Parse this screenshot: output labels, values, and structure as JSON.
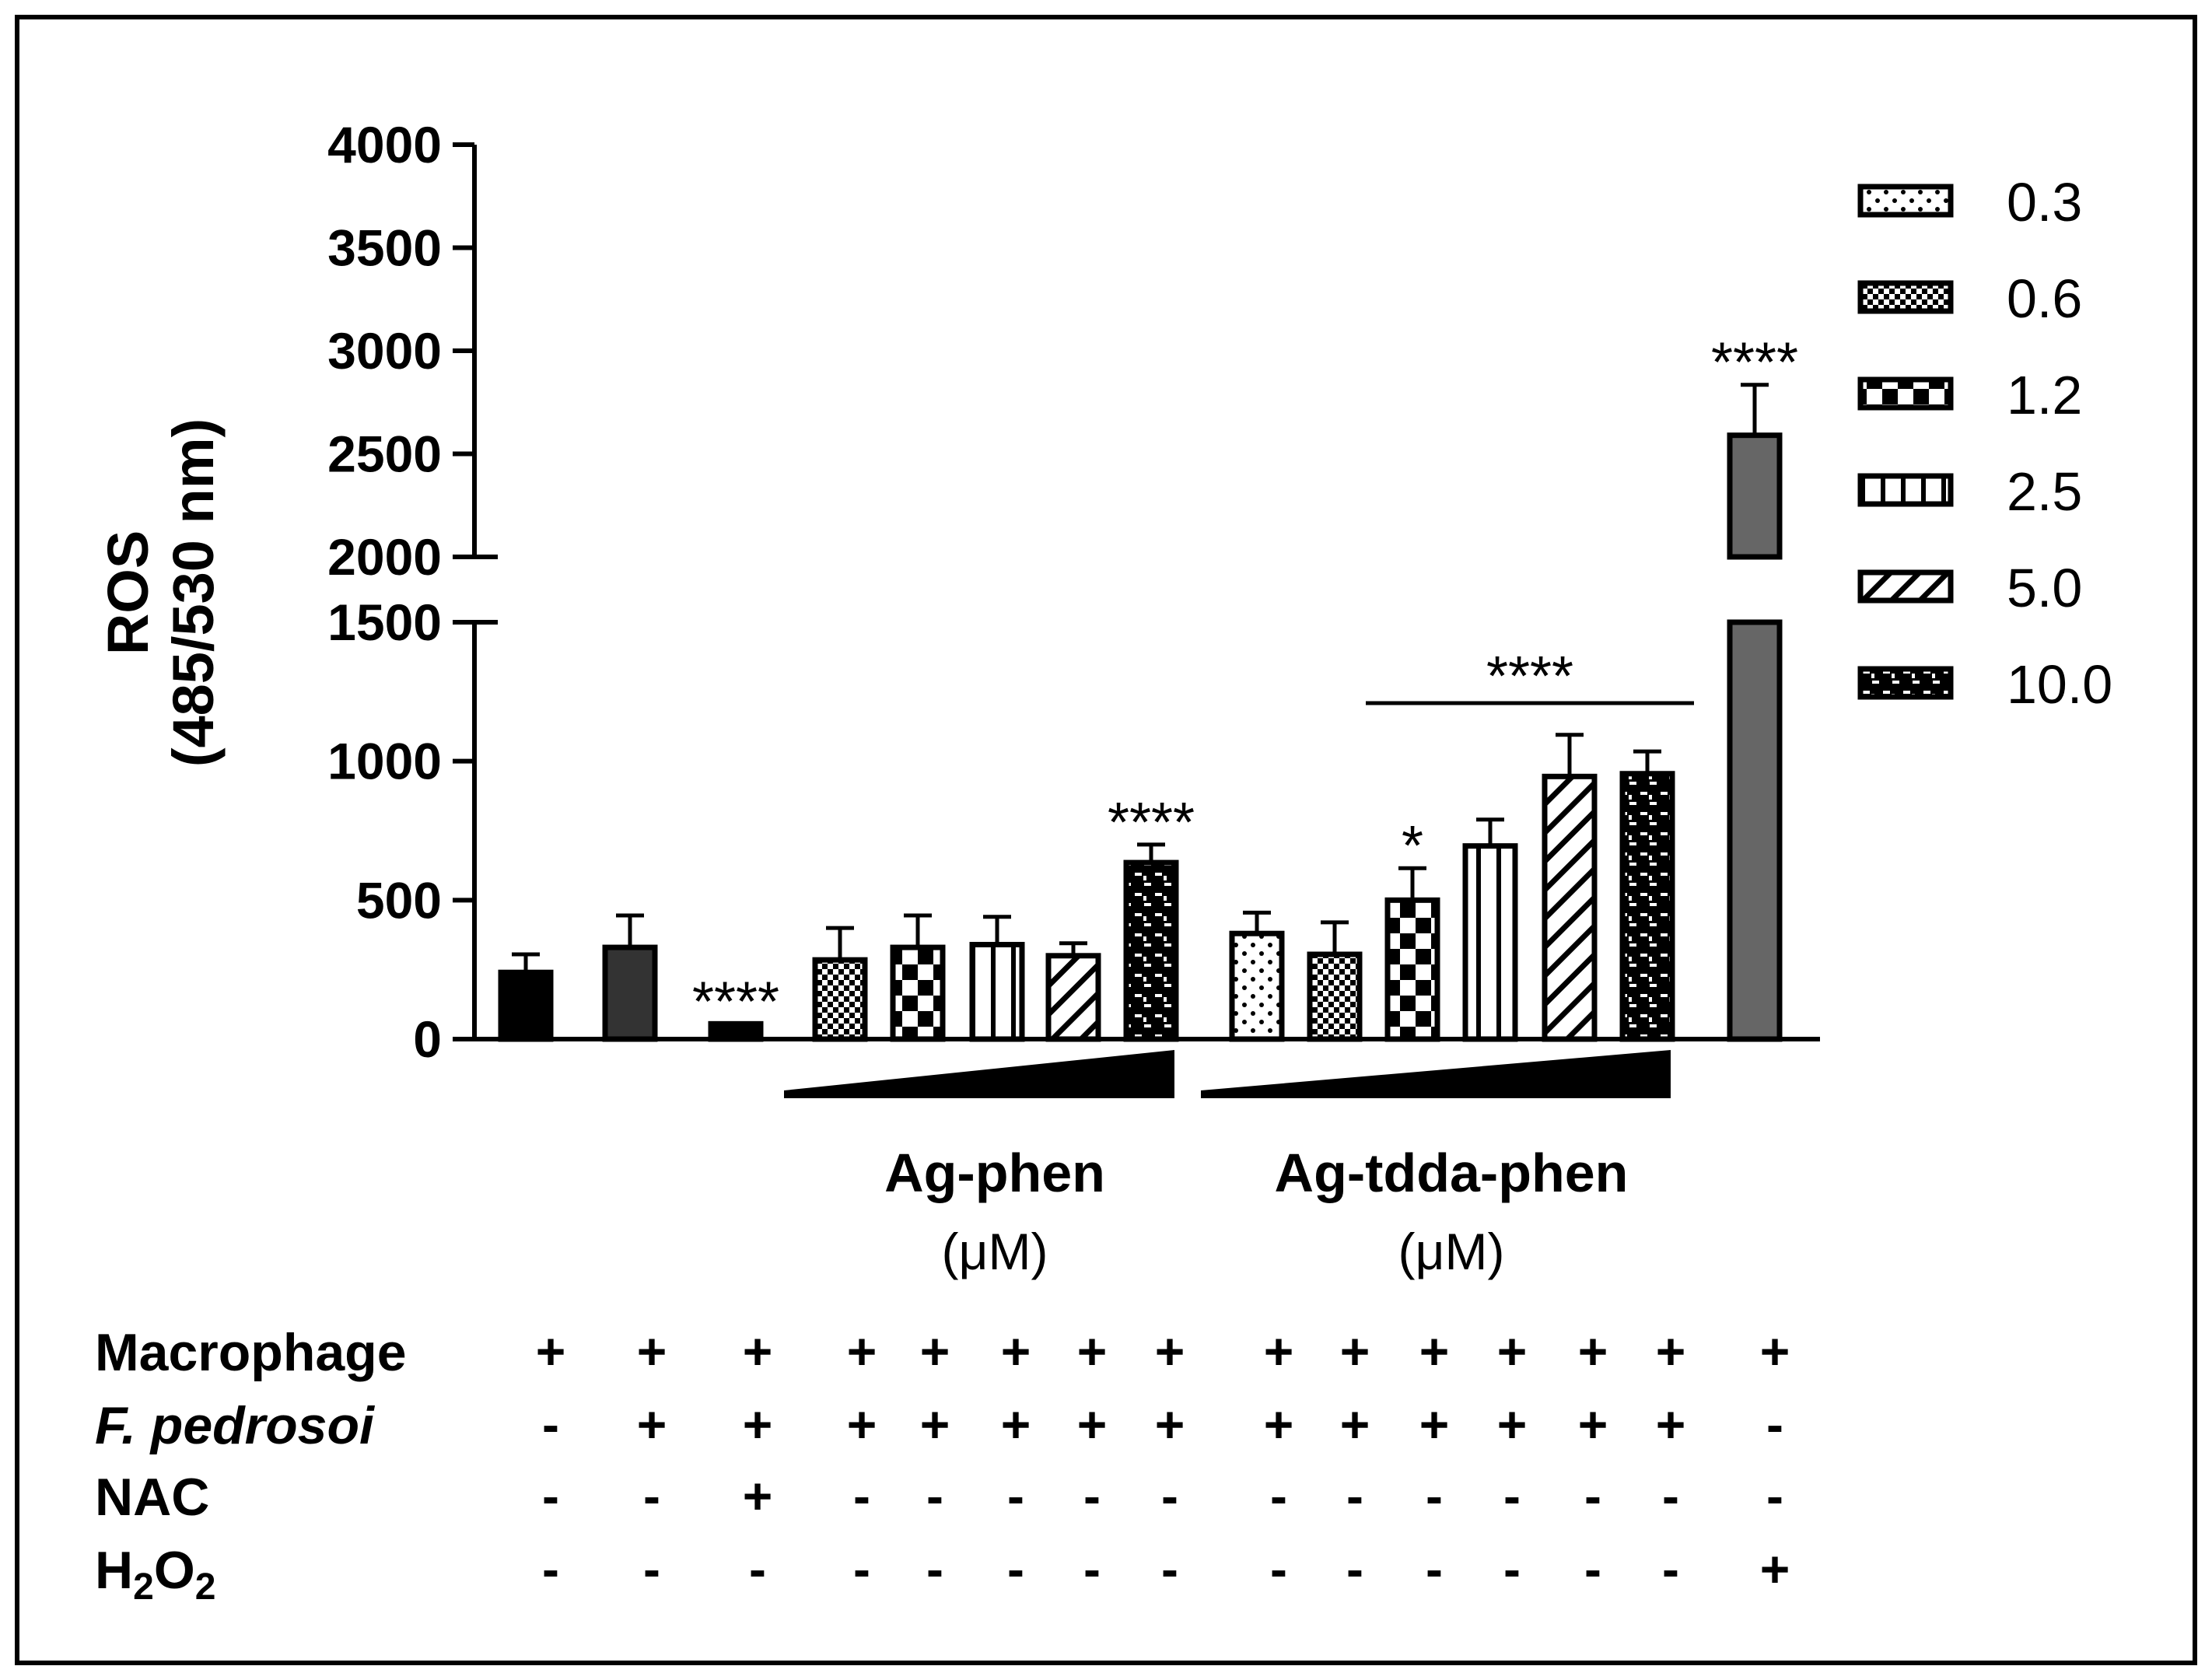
{
  "chart_data": {
    "type": "bar",
    "ylabel": "ROS",
    "ylabel_sub": "(485/530 nm)",
    "y_axis": {
      "broken": true,
      "lower_range": [
        0,
        1500
      ],
      "upper_range": [
        2000,
        4000
      ],
      "lower_ticks": [
        "0",
        "500",
        "1000",
        "1500"
      ],
      "upper_ticks": [
        "2000",
        "2500",
        "3000",
        "3500",
        "4000"
      ]
    },
    "legend": {
      "position": "right",
      "entries": [
        {
          "label": "0.3",
          "pattern": "dots"
        },
        {
          "label": "0.6",
          "pattern": "fine-check"
        },
        {
          "label": "1.2",
          "pattern": "checker"
        },
        {
          "label": "2.5",
          "pattern": "vertical-stripes"
        },
        {
          "label": "5.0",
          "pattern": "diagonal-stripes"
        },
        {
          "label": "10.0",
          "pattern": "dashes"
        }
      ]
    },
    "bars": [
      {
        "value": 240,
        "error": 65,
        "pattern": "solid-black",
        "star": ""
      },
      {
        "value": 330,
        "error": 115,
        "pattern": "solid-dark",
        "star": ""
      },
      {
        "value": 55,
        "error": 0,
        "pattern": "solid-black",
        "star": "****"
      },
      {
        "value": 285,
        "error": 115,
        "pattern": "fine-check",
        "star": ""
      },
      {
        "value": 330,
        "error": 115,
        "pattern": "checker",
        "star": ""
      },
      {
        "value": 340,
        "error": 100,
        "pattern": "vertical-stripes",
        "star": ""
      },
      {
        "value": 300,
        "error": 45,
        "pattern": "diagonal-stripes",
        "star": ""
      },
      {
        "value": 635,
        "error": 65,
        "pattern": "dashes",
        "star": "****"
      },
      {
        "value": 380,
        "error": 75,
        "pattern": "dots",
        "star": ""
      },
      {
        "value": 305,
        "error": 115,
        "pattern": "fine-check",
        "star": ""
      },
      {
        "value": 500,
        "error": 115,
        "pattern": "checker",
        "star": "*"
      },
      {
        "value": 695,
        "error": 95,
        "pattern": "vertical-stripes",
        "star": ""
      },
      {
        "value": 945,
        "error": 150,
        "pattern": "diagonal-stripes",
        "star": ""
      },
      {
        "value": 955,
        "error": 80,
        "pattern": "dashes",
        "star": ""
      },
      {
        "value": 2590,
        "error": 245,
        "pattern": "solid-gray",
        "star": "****"
      }
    ],
    "group_bracket": {
      "label": "****",
      "from_bar": 10,
      "to_bar": 13
    },
    "groups": [
      {
        "name": "Ag-phen",
        "unit": "(μM)",
        "from_bar": 3,
        "to_bar": 7
      },
      {
        "name": "Ag-tdda-phen",
        "unit": "(μM)",
        "from_bar": 8,
        "to_bar": 13
      }
    ],
    "treatment_table": {
      "rows": [
        {
          "label": "Macrophage",
          "italic": false,
          "values": [
            "+",
            "+",
            "+",
            "+",
            "+",
            "+",
            "+",
            "+",
            "+",
            "+",
            "+",
            "+",
            "+",
            "+",
            "+"
          ]
        },
        {
          "label": "F. pedrosoi",
          "italic": true,
          "values": [
            "-",
            "+",
            "+",
            "+",
            "+",
            "+",
            "+",
            "+",
            "+",
            "+",
            "+",
            "+",
            "+",
            "+",
            "-"
          ]
        },
        {
          "label": "NAC",
          "italic": false,
          "values": [
            "-",
            "-",
            "+",
            "-",
            "-",
            "-",
            "-",
            "-",
            "-",
            "-",
            "-",
            "-",
            "-",
            "-",
            "-"
          ]
        },
        {
          "label": "H",
          "sub1": "2",
          "label2": "O",
          "sub2": "2",
          "italic": false,
          "values": [
            "-",
            "-",
            "-",
            "-",
            "-",
            "-",
            "-",
            "-",
            "-",
            "-",
            "-",
            "-",
            "-",
            "-",
            "+"
          ]
        }
      ]
    }
  }
}
